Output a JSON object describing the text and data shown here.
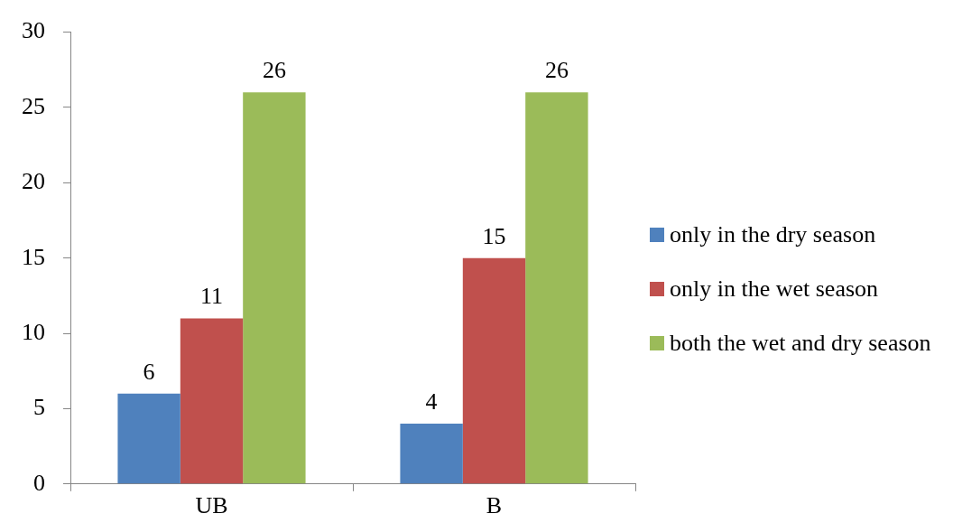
{
  "chart_data": {
    "type": "bar",
    "categories": [
      "UB",
      "B"
    ],
    "series": [
      {
        "name": "only in the dry season",
        "color": "#4f81bd",
        "values": [
          6,
          4
        ]
      },
      {
        "name": "only in the wet season",
        "color": "#c0504d",
        "values": [
          11,
          15
        ]
      },
      {
        "name": "both the wet and dry season",
        "color": "#9bbb59",
        "values": [
          26,
          26
        ]
      }
    ],
    "ylim": [
      0,
      30
    ],
    "yticks": [
      0,
      5,
      10,
      15,
      20,
      25,
      30
    ],
    "grid": false,
    "legend": "right",
    "data_labels": true
  }
}
